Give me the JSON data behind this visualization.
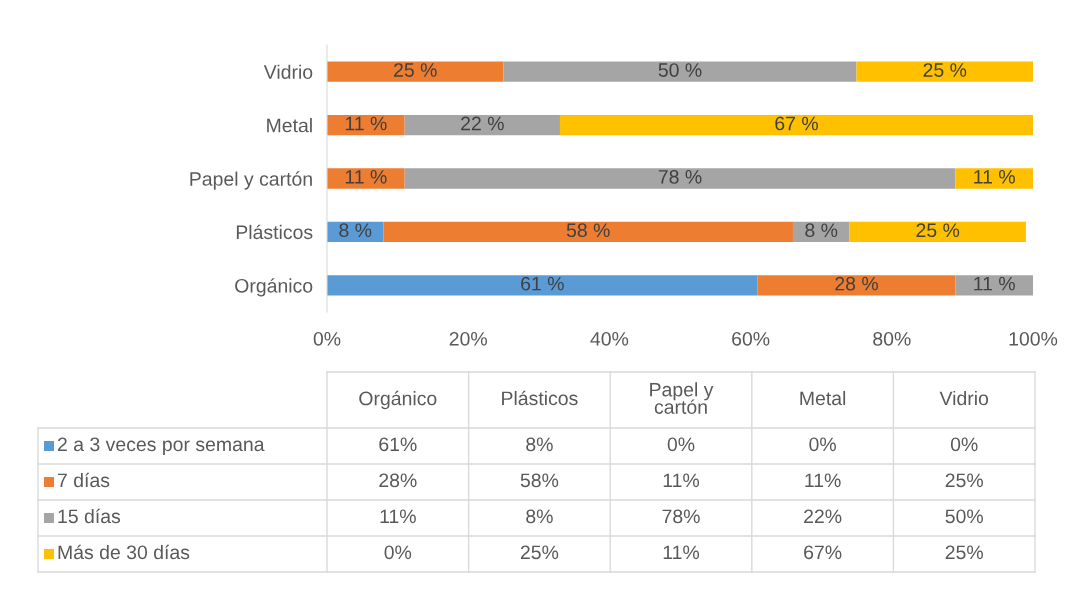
{
  "chart_data": {
    "type": "bar",
    "orientation": "horizontal",
    "stacked": true,
    "categories": [
      "Vidrio",
      "Metal",
      "Papel y cartón",
      "Plásticos",
      "Orgánico"
    ],
    "series": [
      {
        "name": "2 a 3 veces por semana",
        "color": "#5b9bd5",
        "values": [
          0,
          0,
          0,
          8,
          61
        ],
        "value_labels": [
          null,
          null,
          null,
          "8 %",
          "61 %"
        ]
      },
      {
        "name": "7 días",
        "color": "#ed7d31",
        "values": [
          25,
          11,
          11,
          58,
          28
        ],
        "value_labels": [
          "25 %",
          "11 %",
          "11 %",
          "58 %",
          "28 %"
        ]
      },
      {
        "name": "15 días",
        "color": "#a5a5a5",
        "values": [
          50,
          22,
          78,
          8,
          11
        ],
        "value_labels": [
          "50 %",
          "22 %",
          "78 %",
          "8 %",
          "11 %"
        ]
      },
      {
        "name": "Más de 30 días",
        "color": "#ffc000",
        "values": [
          25,
          67,
          11,
          25,
          0
        ],
        "value_labels": [
          "25 %",
          "67 %",
          "11 %",
          "25 %",
          null
        ]
      }
    ],
    "xlim": [
      0,
      100
    ],
    "xticks": [
      {
        "value": 0,
        "label": "0%"
      },
      {
        "value": 20,
        "label": "20%"
      },
      {
        "value": 40,
        "label": "40%"
      },
      {
        "value": 60,
        "label": "60%"
      },
      {
        "value": 80,
        "label": "80%"
      },
      {
        "value": 100,
        "label": "100%"
      }
    ],
    "annotations": [
      "61%",
      "8%",
      "0%",
      "0%",
      "0%",
      "28%",
      "58%",
      "11%",
      "11%",
      "25%",
      "11%",
      "8%",
      "78%",
      "22%",
      "50%",
      "0%",
      "25%",
      "11%",
      "67%",
      "25%"
    ],
    "grid": false,
    "legend": "bottom"
  }
}
